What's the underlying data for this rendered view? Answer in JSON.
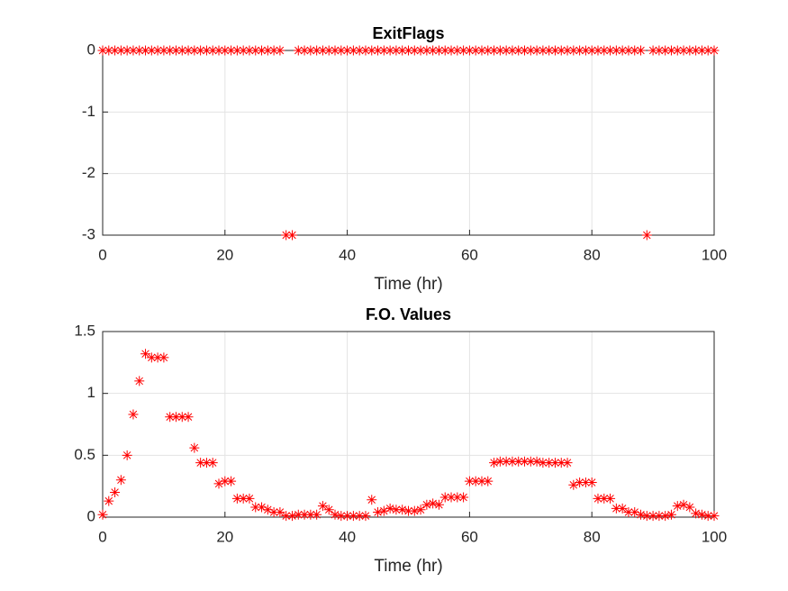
{
  "chart_data": [
    {
      "type": "scatter",
      "title": "ExitFlags",
      "x_label": "Time (hr)",
      "marker": "asterisk",
      "color": "#ff0000",
      "grid": true,
      "x": [
        0,
        1,
        2,
        3,
        4,
        5,
        6,
        7,
        8,
        9,
        10,
        11,
        12,
        13,
        14,
        15,
        16,
        17,
        18,
        19,
        20,
        21,
        22,
        23,
        24,
        25,
        26,
        27,
        28,
        29,
        30,
        31,
        32,
        33,
        34,
        35,
        36,
        37,
        38,
        39,
        40,
        41,
        42,
        43,
        44,
        45,
        46,
        47,
        48,
        49,
        50,
        51,
        52,
        53,
        54,
        55,
        56,
        57,
        58,
        59,
        60,
        61,
        62,
        63,
        64,
        65,
        66,
        67,
        68,
        69,
        70,
        71,
        72,
        73,
        74,
        75,
        76,
        77,
        78,
        79,
        80,
        81,
        82,
        83,
        84,
        85,
        86,
        87,
        88,
        89,
        90,
        91,
        92,
        93,
        94,
        95,
        96,
        97,
        98,
        99,
        100
      ],
      "values": [
        0,
        0,
        0,
        0,
        0,
        0,
        0,
        0,
        0,
        0,
        0,
        0,
        0,
        0,
        0,
        0,
        0,
        0,
        0,
        0,
        0,
        0,
        0,
        0,
        0,
        0,
        0,
        0,
        0,
        0,
        -3,
        -3,
        0,
        0,
        0,
        0,
        0,
        0,
        0,
        0,
        0,
        0,
        0,
        0,
        0,
        0,
        0,
        0,
        0,
        0,
        0,
        0,
        0,
        0,
        0,
        0,
        0,
        0,
        0,
        0,
        0,
        0,
        0,
        0,
        0,
        0,
        0,
        0,
        0,
        0,
        0,
        0,
        0,
        0,
        0,
        0,
        0,
        0,
        0,
        0,
        0,
        0,
        0,
        0,
        0,
        0,
        0,
        0,
        0,
        -3,
        0,
        0,
        0,
        0,
        0,
        0,
        0,
        0,
        0,
        0,
        0
      ],
      "xlim": [
        0,
        100
      ],
      "xticks": [
        0,
        20,
        40,
        60,
        80,
        100
      ],
      "ylim": [
        -3,
        0
      ],
      "yticks": [
        -3,
        -2,
        -1,
        0
      ]
    },
    {
      "type": "scatter",
      "title": "F.O. Values",
      "x_label": "Time (hr)",
      "marker": "asterisk",
      "color": "#ff0000",
      "grid": true,
      "x": [
        0,
        1,
        2,
        3,
        4,
        5,
        6,
        7,
        8,
        9,
        10,
        11,
        12,
        13,
        14,
        15,
        16,
        17,
        18,
        19,
        20,
        21,
        22,
        23,
        24,
        25,
        26,
        27,
        28,
        29,
        30,
        31,
        32,
        33,
        34,
        35,
        36,
        37,
        38,
        39,
        40,
        41,
        42,
        43,
        44,
        45,
        46,
        47,
        48,
        49,
        50,
        51,
        52,
        53,
        54,
        55,
        56,
        57,
        58,
        59,
        60,
        61,
        62,
        63,
        64,
        65,
        66,
        67,
        68,
        69,
        70,
        71,
        72,
        73,
        74,
        75,
        76,
        77,
        78,
        79,
        80,
        81,
        82,
        83,
        84,
        85,
        86,
        87,
        88,
        89,
        90,
        91,
        92,
        93,
        94,
        95,
        96,
        97,
        98,
        99,
        100
      ],
      "values": [
        0.02,
        0.13,
        0.2,
        0.3,
        0.5,
        0.83,
        1.1,
        1.32,
        1.29,
        1.29,
        1.29,
        0.81,
        0.81,
        0.81,
        0.81,
        0.56,
        0.44,
        0.44,
        0.44,
        0.27,
        0.29,
        0.29,
        0.15,
        0.15,
        0.15,
        0.08,
        0.08,
        0.06,
        0.04,
        0.04,
        0.01,
        0.01,
        0.02,
        0.02,
        0.02,
        0.02,
        0.09,
        0.06,
        0.02,
        0.01,
        0.01,
        0.01,
        0.01,
        0.01,
        0.14,
        0.04,
        0.05,
        0.07,
        0.06,
        0.06,
        0.05,
        0.05,
        0.06,
        0.1,
        0.11,
        0.1,
        0.16,
        0.16,
        0.16,
        0.16,
        0.29,
        0.29,
        0.29,
        0.29,
        0.44,
        0.45,
        0.45,
        0.45,
        0.45,
        0.45,
        0.45,
        0.45,
        0.44,
        0.44,
        0.44,
        0.44,
        0.44,
        0.26,
        0.28,
        0.28,
        0.28,
        0.15,
        0.15,
        0.15,
        0.07,
        0.07,
        0.04,
        0.04,
        0.02,
        0.01,
        0.01,
        0.01,
        0.01,
        0.02,
        0.09,
        0.1,
        0.08,
        0.03,
        0.02,
        0.01,
        0.01
      ],
      "xlim": [
        0,
        100
      ],
      "xticks": [
        0,
        20,
        40,
        60,
        80,
        100
      ],
      "ylim": [
        0,
        1.5
      ],
      "yticks": [
        0,
        0.5,
        1,
        1.5
      ]
    }
  ]
}
